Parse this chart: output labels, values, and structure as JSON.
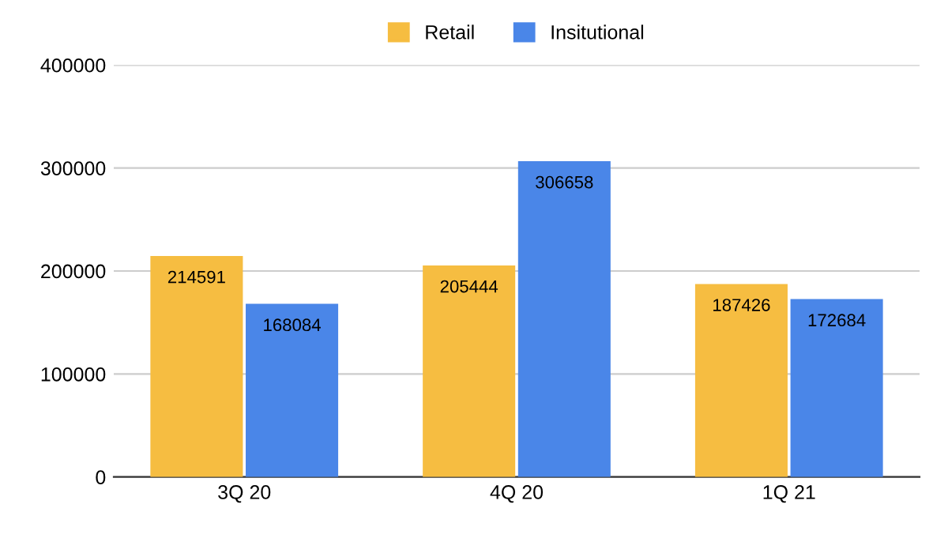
{
  "chart_data": {
    "type": "bar",
    "categories": [
      "3Q 20",
      "4Q 20",
      "1Q 21"
    ],
    "series": [
      {
        "name": "Retail",
        "color": "#f6bd41",
        "values": [
          214591,
          205444,
          187426
        ]
      },
      {
        "name": "Insitutional",
        "color": "#4a86e8",
        "values": [
          168084,
          306658,
          172684
        ]
      }
    ],
    "ylim": [
      0,
      400000
    ],
    "yticks": [
      0,
      100000,
      200000,
      300000,
      400000
    ],
    "grid": "y",
    "legend": "top",
    "data_labels": true
  }
}
